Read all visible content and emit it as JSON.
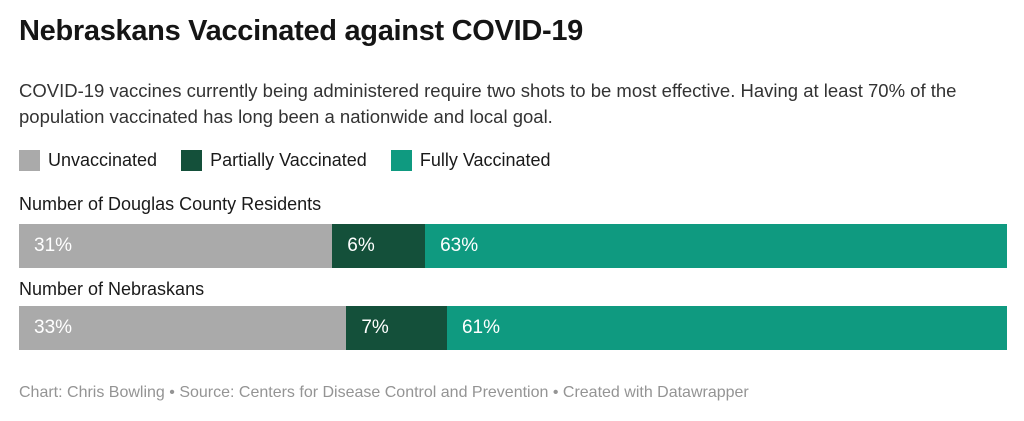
{
  "title": "Nebraskans Vaccinated against COVID-19",
  "description": "COVID-19 vaccines currently being administered require two shots to be most effective. Having at least 70% of the population vaccinated has long been a nationwide and local goal.",
  "colors": {
    "unvaccinated": "#aaaaaa",
    "partially_vaccinated": "#14503a",
    "fully_vaccinated": "#0f9a80",
    "background": "#ffffff",
    "title_text": "#151515",
    "body_text": "#333333",
    "footer_text": "#949494",
    "bar_label_text": "#ffffff"
  },
  "legend": {
    "items": [
      {
        "label": "Unvaccinated",
        "color": "#aaaaaa"
      },
      {
        "label": "Partially Vaccinated",
        "color": "#14503a"
      },
      {
        "label": "Fully Vaccinated",
        "color": "#0f9a80"
      }
    ]
  },
  "chart_data": {
    "type": "bar",
    "subtype": "stacked-horizontal",
    "title": "Nebraskans Vaccinated against COVID-19",
    "subtitle": "COVID-19 vaccines currently being administered require two shots to be most effective. Having at least 70% of the population vaccinated has long been a nationwide and local goal.",
    "categories": [
      "Number of Douglas County Residents",
      "Number of Nebraskans"
    ],
    "series": [
      {
        "name": "Unvaccinated",
        "values": [
          31,
          33
        ],
        "color": "#aaaaaa"
      },
      {
        "name": "Partially Vaccinated",
        "values": [
          6,
          7
        ],
        "color": "#14503a"
      },
      {
        "name": "Fully Vaccinated",
        "values": [
          63,
          61
        ],
        "color": "#0f9a80"
      }
    ],
    "value_format": "percent",
    "xlim": [
      0,
      100
    ],
    "grid": false,
    "legend_position": "top-left",
    "value_labels": "inside-left"
  },
  "rows": [
    {
      "label": "Number of Douglas County Residents",
      "segments": [
        {
          "name": "Unvaccinated",
          "value": 31,
          "text": "31%"
        },
        {
          "name": "Partially Vaccinated",
          "value": 6,
          "text": "6%"
        },
        {
          "name": "Fully Vaccinated",
          "value": 63,
          "text": "63%"
        }
      ]
    },
    {
      "label": "Number of Nebraskans",
      "segments": [
        {
          "name": "Unvaccinated",
          "value": 33,
          "text": "33%"
        },
        {
          "name": "Partially Vaccinated",
          "value": 7,
          "text": "7%"
        },
        {
          "name": "Fully Vaccinated",
          "value": 61,
          "text": "61%"
        }
      ]
    }
  ],
  "footer": "Chart: Chris Bowling • Source: Centers for Disease Control and Prevention • Created with Datawrapper"
}
